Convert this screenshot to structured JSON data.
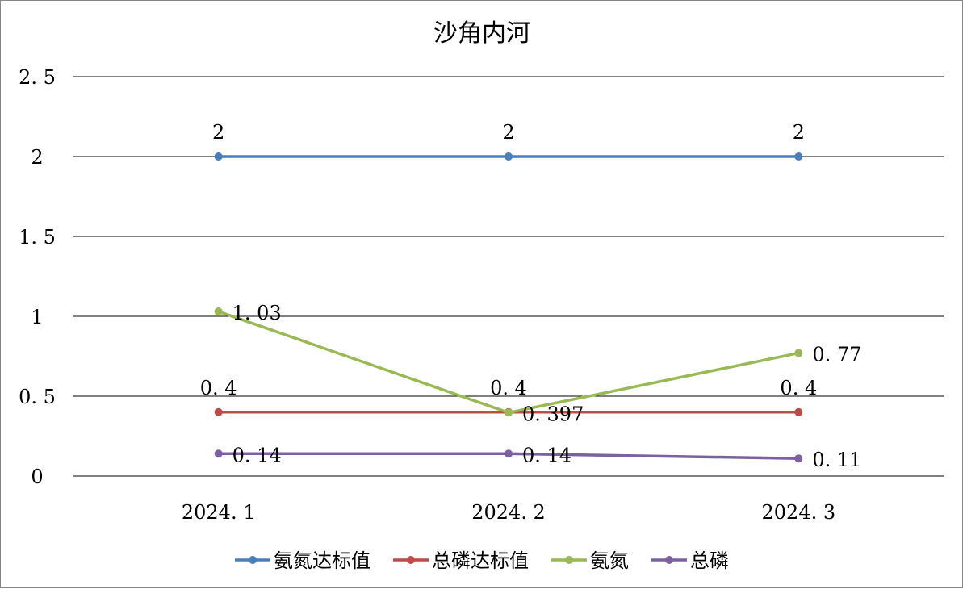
{
  "chart_data": {
    "type": "line",
    "title": "沙角内河",
    "categories": [
      "2024.1",
      "2024.2",
      "2024.3"
    ],
    "ylim": [
      0,
      2.5
    ],
    "yticks": [
      "0",
      "0.5",
      "1",
      "1.5",
      "2",
      "2.5"
    ],
    "yticks_display": [
      "0",
      "0. 5",
      "1",
      "1. 5",
      "2",
      "2. 5"
    ],
    "categories_display": [
      "2024. 1",
      "2024. 2",
      "2024. 3"
    ],
    "grid": true,
    "legend_position": "bottom",
    "series": [
      {
        "name": "氨氮达标值",
        "values": [
          2,
          2,
          2
        ],
        "labels": [
          "2",
          "2",
          "2"
        ],
        "color": "#4a7ebb",
        "label_position": "above"
      },
      {
        "name": "总磷达标值",
        "values": [
          0.4,
          0.4,
          0.4
        ],
        "labels": [
          "0. 4",
          "0. 4",
          "0. 4"
        ],
        "color": "#be4b48",
        "label_position": "above"
      },
      {
        "name": "氨氮",
        "values": [
          1.03,
          0.397,
          0.77
        ],
        "labels": [
          "1. 03",
          "0. 397",
          "0. 77"
        ],
        "color": "#98b954",
        "label_position": "right"
      },
      {
        "name": "总磷",
        "values": [
          0.14,
          0.14,
          0.11
        ],
        "labels": [
          "0. 14",
          "0. 14",
          "0. 11"
        ],
        "color": "#7d60a0",
        "label_position": "right"
      }
    ]
  }
}
